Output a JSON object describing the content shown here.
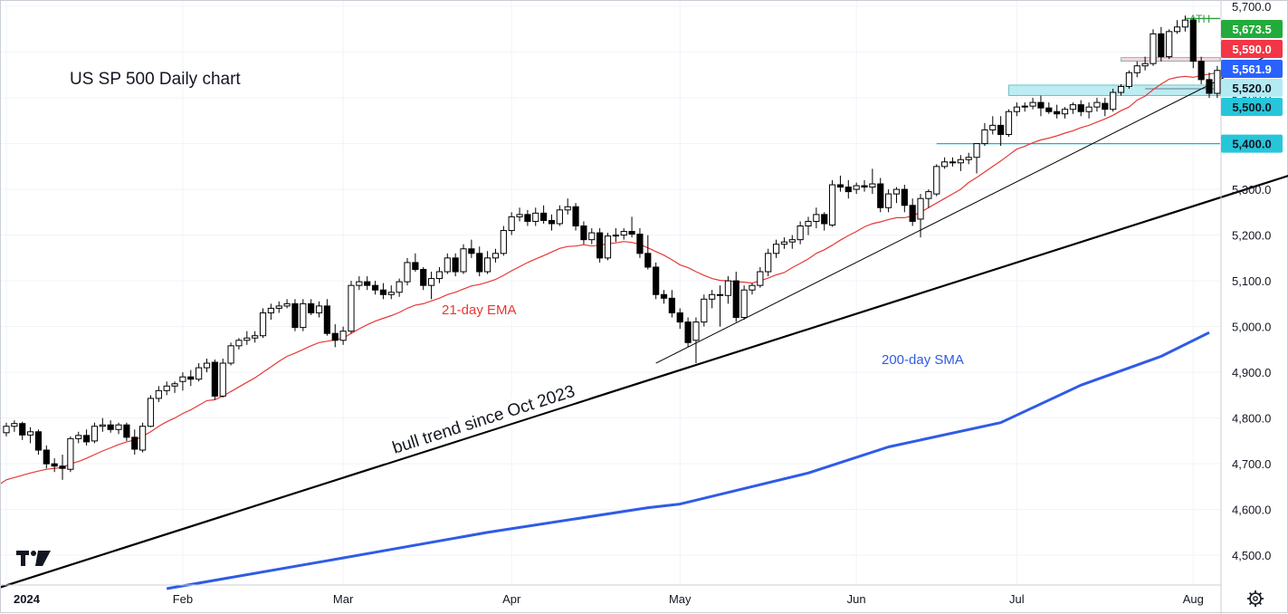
{
  "chart_data": {
    "type": "candlestick",
    "title": "US SP 500 Daily chart",
    "y_axis": {
      "range": [
        4435,
        5712
      ],
      "ticks": [
        4500,
        4600,
        4700,
        4800,
        4900,
        5000,
        5100,
        5200,
        5300,
        5400,
        5500,
        5600,
        5700
      ],
      "tick_labels": [
        "4,500.0",
        "4,600.0",
        "4,700.0",
        "4,800.0",
        "4,900.0",
        "5,000.0",
        "5,100.0",
        "5,200.0",
        "5,300.0",
        "5,400.0",
        "5,500.0",
        "5,600.0",
        "5,700.0"
      ]
    },
    "x_axis": {
      "month_labels": [
        "2024",
        "Feb",
        "Mar",
        "Apr",
        "May",
        "Jun",
        "Jul",
        "Aug"
      ],
      "month_start_index": [
        0,
        22,
        42,
        63,
        84,
        106,
        126,
        148
      ]
    },
    "grid": true,
    "candles": [
      [
        4768,
        4790,
        4760,
        4782
      ],
      [
        4782,
        4795,
        4770,
        4788
      ],
      [
        4788,
        4792,
        4752,
        4763
      ],
      [
        4763,
        4780,
        4745,
        4770
      ],
      [
        4770,
        4775,
        4720,
        4730
      ],
      [
        4730,
        4740,
        4690,
        4700
      ],
      [
        4700,
        4712,
        4682,
        4695
      ],
      [
        4695,
        4720,
        4665,
        4690
      ],
      [
        4688,
        4760,
        4682,
        4755
      ],
      [
        4755,
        4770,
        4745,
        4762
      ],
      [
        4762,
        4775,
        4740,
        4748
      ],
      [
        4750,
        4790,
        4745,
        4782
      ],
      [
        4782,
        4800,
        4770,
        4785
      ],
      [
        4785,
        4795,
        4768,
        4775
      ],
      [
        4775,
        4790,
        4765,
        4785
      ],
      [
        4785,
        4790,
        4750,
        4758
      ],
      [
        4758,
        4775,
        4720,
        4732
      ],
      [
        4730,
        4790,
        4725,
        4782
      ],
      [
        4782,
        4850,
        4780,
        4843
      ],
      [
        4843,
        4870,
        4835,
        4860
      ],
      [
        4860,
        4880,
        4850,
        4870
      ],
      [
        4870,
        4880,
        4855,
        4875
      ],
      [
        4880,
        4900,
        4860,
        4890
      ],
      [
        4890,
        4905,
        4870,
        4885
      ],
      [
        4885,
        4920,
        4880,
        4910
      ],
      [
        4910,
        4930,
        4900,
        4920
      ],
      [
        4922,
        4928,
        4840,
        4848
      ],
      [
        4848,
        4930,
        4845,
        4920
      ],
      [
        4920,
        4965,
        4915,
        4958
      ],
      [
        4958,
        4975,
        4950,
        4970
      ],
      [
        4970,
        4990,
        4960,
        4975
      ],
      [
        4975,
        4990,
        4965,
        4980
      ],
      [
        4980,
        5040,
        4975,
        5030
      ],
      [
        5030,
        5050,
        5015,
        5040
      ],
      [
        5040,
        5055,
        5030,
        5045
      ],
      [
        5045,
        5060,
        5040,
        5050
      ],
      [
        5050,
        5060,
        4990,
        4998
      ],
      [
        4998,
        5060,
        4990,
        5050
      ],
      [
        5050,
        5060,
        5025,
        5030
      ],
      [
        5030,
        5055,
        5020,
        5045
      ],
      [
        5045,
        5060,
        4980,
        4985
      ],
      [
        4985,
        5005,
        4955,
        4970
      ],
      [
        4970,
        5000,
        4960,
        4990
      ],
      [
        4990,
        5100,
        4985,
        5090
      ],
      [
        5090,
        5110,
        5080,
        5098
      ],
      [
        5098,
        5110,
        5080,
        5090
      ],
      [
        5090,
        5100,
        5070,
        5080
      ],
      [
        5080,
        5095,
        5060,
        5070
      ],
      [
        5070,
        5090,
        5060,
        5075
      ],
      [
        5075,
        5105,
        5065,
        5098
      ],
      [
        5098,
        5150,
        5090,
        5140
      ],
      [
        5140,
        5160,
        5120,
        5125
      ],
      [
        5125,
        5130,
        5080,
        5090
      ],
      [
        5090,
        5120,
        5060,
        5105
      ],
      [
        5105,
        5130,
        5095,
        5120
      ],
      [
        5120,
        5160,
        5115,
        5150
      ],
      [
        5150,
        5160,
        5110,
        5120
      ],
      [
        5120,
        5180,
        5115,
        5170
      ],
      [
        5170,
        5190,
        5150,
        5160
      ],
      [
        5160,
        5175,
        5110,
        5120
      ],
      [
        5120,
        5165,
        5115,
        5150
      ],
      [
        5150,
        5170,
        5140,
        5160
      ],
      [
        5160,
        5220,
        5155,
        5210
      ],
      [
        5210,
        5250,
        5200,
        5240
      ],
      [
        5240,
        5260,
        5230,
        5245
      ],
      [
        5245,
        5255,
        5220,
        5230
      ],
      [
        5230,
        5260,
        5220,
        5248
      ],
      [
        5248,
        5265,
        5225,
        5232
      ],
      [
        5232,
        5245,
        5210,
        5225
      ],
      [
        5225,
        5265,
        5220,
        5255
      ],
      [
        5255,
        5280,
        5245,
        5262
      ],
      [
        5262,
        5270,
        5210,
        5220
      ],
      [
        5220,
        5230,
        5180,
        5190
      ],
      [
        5190,
        5215,
        5180,
        5205
      ],
      [
        5205,
        5215,
        5140,
        5150
      ],
      [
        5150,
        5205,
        5145,
        5198
      ],
      [
        5198,
        5215,
        5185,
        5200
      ],
      [
        5200,
        5215,
        5190,
        5208
      ],
      [
        5208,
        5240,
        5195,
        5202
      ],
      [
        5202,
        5215,
        5150,
        5160
      ],
      [
        5160,
        5200,
        5125,
        5130
      ],
      [
        5130,
        5140,
        5060,
        5070
      ],
      [
        5070,
        5080,
        5050,
        5062
      ],
      [
        5062,
        5080,
        5020,
        5030
      ],
      [
        5030,
        5040,
        4995,
        5010
      ],
      [
        5010,
        5020,
        4955,
        4965
      ],
      [
        4970,
        5020,
        4920,
        5010
      ],
      [
        5010,
        5070,
        5000,
        5060
      ],
      [
        5060,
        5080,
        5040,
        5070
      ],
      [
        5070,
        5090,
        5000,
        5068
      ],
      [
        5068,
        5110,
        5050,
        5100
      ],
      [
        5100,
        5120,
        5010,
        5020
      ],
      [
        5020,
        5090,
        5015,
        5080
      ],
      [
        5080,
        5095,
        5070,
        5090
      ],
      [
        5090,
        5130,
        5085,
        5120
      ],
      [
        5120,
        5170,
        5110,
        5160
      ],
      [
        5160,
        5190,
        5150,
        5180
      ],
      [
        5180,
        5195,
        5170,
        5185
      ],
      [
        5185,
        5200,
        5170,
        5190
      ],
      [
        5190,
        5230,
        5180,
        5220
      ],
      [
        5220,
        5240,
        5200,
        5230
      ],
      [
        5230,
        5260,
        5215,
        5245
      ],
      [
        5245,
        5250,
        5210,
        5225
      ],
      [
        5222,
        5320,
        5218,
        5310
      ],
      [
        5310,
        5330,
        5295,
        5305
      ],
      [
        5305,
        5320,
        5280,
        5295
      ],
      [
        5300,
        5315,
        5290,
        5308
      ],
      [
        5308,
        5320,
        5295,
        5305
      ],
      [
        5305,
        5345,
        5290,
        5312
      ],
      [
        5312,
        5325,
        5250,
        5260
      ],
      [
        5260,
        5300,
        5250,
        5290
      ],
      [
        5290,
        5305,
        5270,
        5300
      ],
      [
        5300,
        5310,
        5250,
        5265
      ],
      [
        5265,
        5280,
        5220,
        5230
      ],
      [
        5235,
        5290,
        5195,
        5280
      ],
      [
        5280,
        5300,
        5260,
        5295
      ],
      [
        5290,
        5355,
        5285,
        5350
      ],
      [
        5350,
        5370,
        5345,
        5360
      ],
      [
        5360,
        5370,
        5350,
        5358
      ],
      [
        5358,
        5375,
        5340,
        5365
      ],
      [
        5365,
        5380,
        5355,
        5370
      ],
      [
        5370,
        5395,
        5335,
        5400
      ],
      [
        5400,
        5445,
        5395,
        5430
      ],
      [
        5430,
        5460,
        5420,
        5440
      ],
      [
        5440,
        5460,
        5395,
        5420
      ],
      [
        5420,
        5475,
        5415,
        5470
      ],
      [
        5470,
        5490,
        5460,
        5480
      ],
      [
        5480,
        5490,
        5470,
        5482
      ],
      [
        5482,
        5500,
        5475,
        5490
      ],
      [
        5490,
        5505,
        5460,
        5478
      ],
      [
        5478,
        5490,
        5465,
        5470
      ],
      [
        5470,
        5485,
        5455,
        5465
      ],
      [
        5465,
        5480,
        5455,
        5475
      ],
      [
        5475,
        5490,
        5465,
        5485
      ],
      [
        5485,
        5495,
        5460,
        5470
      ],
      [
        5470,
        5490,
        5455,
        5480
      ],
      [
        5480,
        5500,
        5470,
        5490
      ],
      [
        5488,
        5500,
        5460,
        5475
      ],
      [
        5475,
        5520,
        5470,
        5512
      ],
      [
        5512,
        5530,
        5505,
        5525
      ],
      [
        5525,
        5560,
        5520,
        5555
      ],
      [
        5555,
        5580,
        5545,
        5570
      ],
      [
        5570,
        5590,
        5560,
        5575
      ],
      [
        5575,
        5650,
        5570,
        5640
      ],
      [
        5640,
        5655,
        5580,
        5590
      ],
      [
        5590,
        5650,
        5585,
        5645
      ],
      [
        5645,
        5670,
        5640,
        5655
      ],
      [
        5655,
        5680,
        5645,
        5670
      ],
      [
        5670,
        5675,
        5565,
        5580
      ],
      [
        5580,
        5590,
        5530,
        5540
      ],
      [
        5540,
        5555,
        5500,
        5510
      ],
      [
        5510,
        5570,
        5500,
        5560
      ],
      [
        5560,
        5575,
        5545,
        5570
      ],
      [
        5570,
        5580,
        5560,
        5575
      ]
    ],
    "ema21": [
      4665,
      4670,
      4675,
      4680,
      4684,
      4688,
      4690,
      4692,
      4700,
      4705,
      4712,
      4720,
      4728,
      4735,
      4742,
      4748,
      4752,
      4760,
      4770,
      4782,
      4792,
      4800,
      4810,
      4818,
      4828,
      4838,
      4840,
      4848,
      4858,
      4868,
      4878,
      4888,
      4900,
      4912,
      4924,
      4935,
      4942,
      4950,
      4958,
      4965,
      4968,
      4971,
      4975,
      4985,
      4995,
      5004,
      5012,
      5018,
      5024,
      5031,
      5040,
      5047,
      5050,
      5056,
      5062,
      5070,
      5075,
      5082,
      5089,
      5092,
      5097,
      5103,
      5112,
      5122,
      5131,
      5140,
      5148,
      5155,
      5163,
      5171,
      5175,
      5176,
      5179,
      5176,
      5178,
      5181,
      5183,
      5186,
      5184,
      5180,
      5172,
      5164,
      5156,
      5146,
      5135,
      5129,
      5120,
      5112,
      5105,
      5101,
      5100,
      5098,
      5097,
      5095,
      5100,
      5106,
      5113,
      5118,
      5129,
      5138,
      5148,
      5160,
      5168,
      5178,
      5189,
      5199,
      5208,
      5218,
      5225,
      5229,
      5234,
      5238,
      5238,
      5242,
      5250,
      5260,
      5270,
      5280,
      5290,
      5300,
      5315,
      5326,
      5338,
      5350,
      5362,
      5375,
      5388,
      5394,
      5402,
      5408,
      5412,
      5417,
      5423,
      5428,
      5435,
      5440,
      5447,
      5454,
      5462,
      5472,
      5480,
      5495,
      5504,
      5518,
      5530,
      5541,
      5545,
      5547,
      5545,
      5549,
      5552,
      5555
    ],
    "sma200": {
      "from_index": 20,
      "points": [
        [
          20,
          4427
        ],
        [
          40,
          4488
        ],
        [
          60,
          4550
        ],
        [
          80,
          4604
        ],
        [
          84,
          4612
        ],
        [
          100,
          4680
        ],
        [
          110,
          4737
        ],
        [
          124,
          4790
        ],
        [
          134,
          4872
        ],
        [
          144,
          4935
        ],
        [
          150,
          4987
        ]
      ]
    },
    "trendlines": [
      {
        "label": "bull trend since Oct 2023",
        "from": [
          -2,
          4423
        ],
        "to": [
          179,
          5437
        ]
      },
      {
        "from": [
          81,
          4920
        ],
        "to": [
          157,
          5590
        ]
      }
    ],
    "levels": [
      {
        "value": 5673.5,
        "label": "5,673.5",
        "caption": "ATH",
        "color": "#2e9e3e",
        "tag_bg": "#22ab3a",
        "line_from": 147
      },
      {
        "value": 5590.0,
        "label": "5,590.0",
        "tag_bg": "#f23645"
      },
      {
        "value": 5561.9,
        "label": "5,561.9",
        "tag_bg": "#2962ff"
      },
      {
        "value": 5520.0,
        "label": "5,520.0",
        "tag_bg": "#b2ebf2"
      },
      {
        "value": 5500.0,
        "label": "5,500.0",
        "tag_bg": "#26c6da"
      },
      {
        "value": 5400.0,
        "label": "5,400.0",
        "color": "#00bcd4",
        "tag_bg": "#26c6da",
        "line_from": 116
      }
    ],
    "zones": [
      {
        "low": 5505,
        "high": 5528,
        "from": 125,
        "color": "#a7e5ef"
      },
      {
        "low": 5580,
        "high": 5588,
        "from": 139,
        "color": "#f8c7d0"
      }
    ],
    "annotations": {
      "ema_label": "21-day EMA",
      "sma_label": "200-day SMA",
      "trend_label": "bull trend since Oct 2023"
    },
    "colors": {
      "ema": "#e53935",
      "sma": "#2f5be6",
      "trend": "#000000",
      "candle_up": "#ffffff",
      "candle_down": "#000000"
    }
  },
  "ui": {
    "logo": "TV",
    "settings_icon": "gear-icon"
  }
}
